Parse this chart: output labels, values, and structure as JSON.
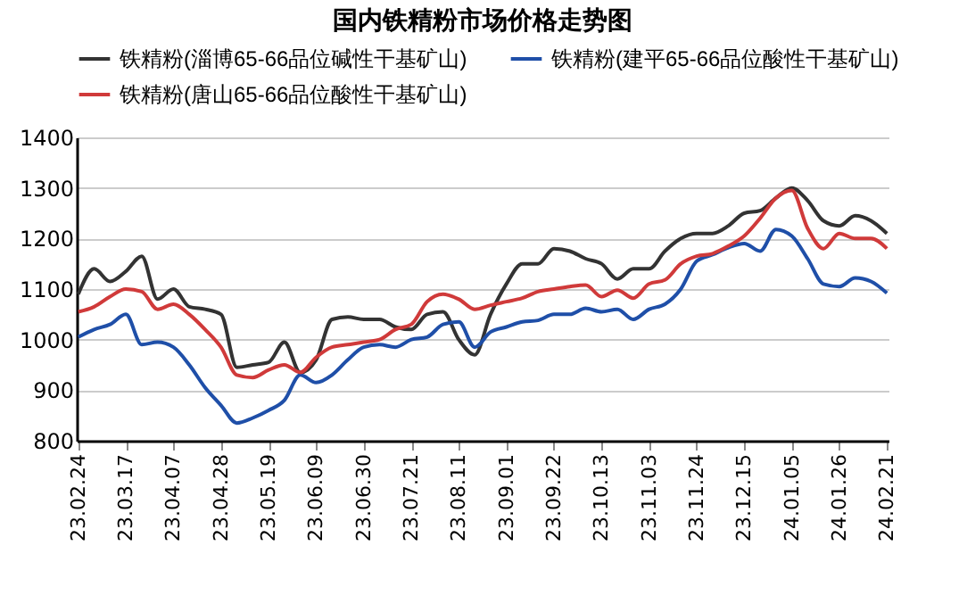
{
  "chart_data": {
    "type": "line",
    "title": "国内铁精粉市场价格走势图",
    "categories": [
      "23.02.24",
      null,
      null,
      "23.03.17",
      null,
      null,
      "23.04.07",
      null,
      null,
      "23.04.28",
      null,
      null,
      "23.05.19",
      null,
      null,
      "23.06.09",
      null,
      null,
      "23.06.30",
      null,
      null,
      "23.07.21",
      null,
      null,
      "23.08.11",
      null,
      null,
      "23.09.01",
      null,
      null,
      "23.09.22",
      null,
      null,
      "23.10.13",
      null,
      null,
      "23.11.03",
      null,
      null,
      "23.11.24",
      null,
      null,
      "23.12.15",
      null,
      null,
      "24.01.05",
      null,
      null,
      "24.01.26",
      null,
      null,
      "24.02.21"
    ],
    "series": [
      {
        "name": "铁精粉(淄博65-66品位碱性干基矿山)",
        "color": "#333333",
        "values": [
          1090,
          1140,
          1115,
          1135,
          1165,
          1080,
          1100,
          1065,
          1060,
          1050,
          945,
          950,
          955,
          995,
          935,
          960,
          1040,
          1045,
          1040,
          1040,
          1025,
          1020,
          1050,
          1055,
          1000,
          970,
          1050,
          1110,
          1150,
          1150,
          1180,
          1175,
          1160,
          1150,
          1120,
          1140,
          1140,
          1175,
          1200,
          1210,
          1210,
          1225,
          1250,
          1255,
          1280,
          1300,
          1275,
          1235,
          1225,
          1245,
          1235,
          1210
        ]
      },
      {
        "name": "铁精粉(建平65-66品位酸性干基矿山)",
        "color": "#1f4fa8",
        "values": [
          1005,
          1020,
          1030,
          1050,
          990,
          995,
          985,
          950,
          905,
          870,
          835,
          845,
          860,
          880,
          930,
          915,
          930,
          960,
          985,
          990,
          985,
          1000,
          1005,
          1030,
          1035,
          985,
          1015,
          1025,
          1035,
          1038,
          1050,
          1050,
          1062,
          1055,
          1060,
          1040,
          1060,
          1070,
          1100,
          1155,
          1168,
          1182,
          1190,
          1175,
          1218,
          1205,
          1160,
          1110,
          1105,
          1122,
          1115,
          1092
        ]
      },
      {
        "name": "铁精粉(唐山65-66品位酸性干基矿山)",
        "color": "#d03a3a",
        "values": [
          1055,
          1065,
          1085,
          1100,
          1095,
          1060,
          1070,
          1050,
          1020,
          985,
          930,
          925,
          940,
          950,
          935,
          965,
          985,
          990,
          995,
          1000,
          1020,
          1030,
          1075,
          1090,
          1080,
          1060,
          1068,
          1075,
          1082,
          1095,
          1100,
          1105,
          1108,
          1085,
          1098,
          1082,
          1110,
          1118,
          1150,
          1165,
          1170,
          1185,
          1205,
          1240,
          1280,
          1295,
          1220,
          1180,
          1210,
          1200,
          1200,
          1180
        ]
      }
    ],
    "ylim": [
      800,
      1400
    ],
    "yticks": [
      800,
      900,
      1000,
      1100,
      1200,
      1300,
      1400
    ],
    "grid": "y",
    "legend": "top",
    "line_style": "solid",
    "marker": "none"
  }
}
